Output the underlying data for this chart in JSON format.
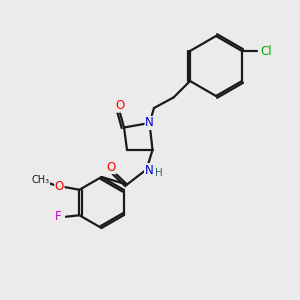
{
  "bg_color": "#ebebeb",
  "bond_color": "#1a1a1a",
  "atom_colors": {
    "O": "#ff0000",
    "N": "#0000cc",
    "F": "#cc00cc",
    "Cl": "#00aa00",
    "H": "#336666",
    "C": "#1a1a1a"
  },
  "lw": 1.6,
  "fontsize": 8.5
}
